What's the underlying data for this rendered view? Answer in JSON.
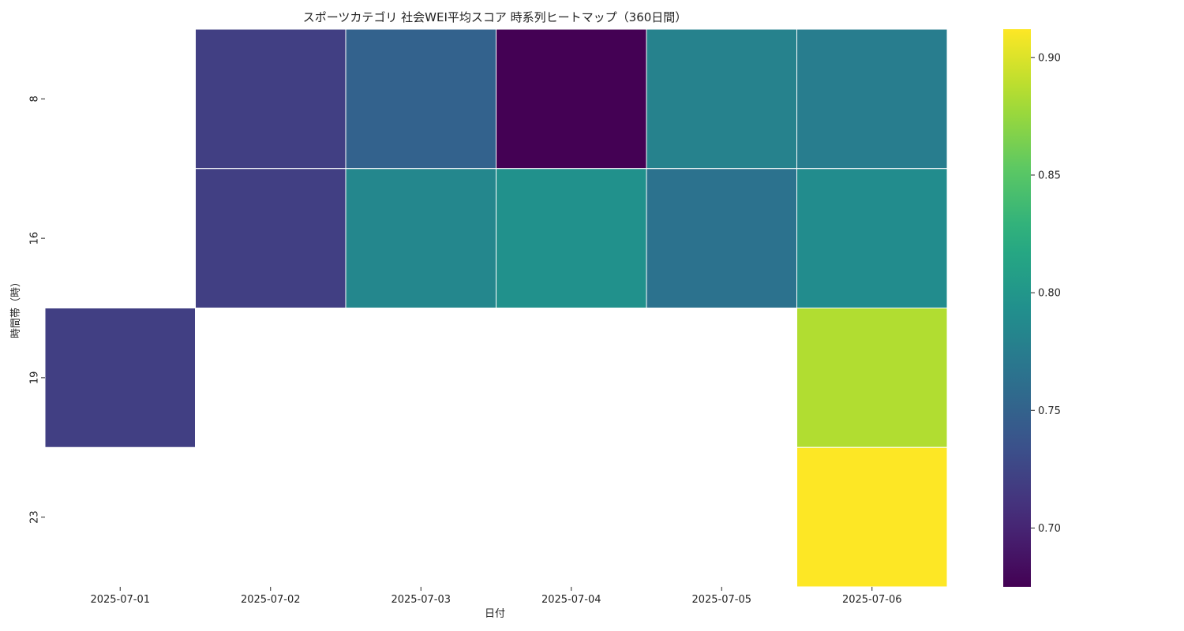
{
  "chart_data": {
    "type": "heatmap",
    "title": "スポーツカテゴリ 社会WEI平均スコア 時系列ヒートマップ（360日間）",
    "xlabel": "日付",
    "ylabel": "時間帯（時）",
    "x_categories": [
      "2025-07-01",
      "2025-07-02",
      "2025-07-03",
      "2025-07-04",
      "2025-07-05",
      "2025-07-06"
    ],
    "y_categories": [
      "8",
      "16",
      "19",
      "23"
    ],
    "values": [
      [
        null,
        0.72,
        0.75,
        0.675,
        0.78,
        0.775
      ],
      [
        null,
        0.72,
        0.785,
        0.795,
        0.765,
        0.79
      ],
      [
        0.72,
        null,
        null,
        null,
        null,
        0.885
      ],
      [
        null,
        null,
        null,
        null,
        null,
        0.912
      ]
    ],
    "colormap": "viridis",
    "colorbar": {
      "min": 0.675,
      "max": 0.912,
      "ticks": [
        "0.70",
        "0.75",
        "0.80",
        "0.85",
        "0.90"
      ],
      "tick_values": [
        0.7,
        0.75,
        0.8,
        0.85,
        0.9
      ]
    },
    "missing_color": "#ffffff",
    "cell_border_color": "#ffffff"
  }
}
